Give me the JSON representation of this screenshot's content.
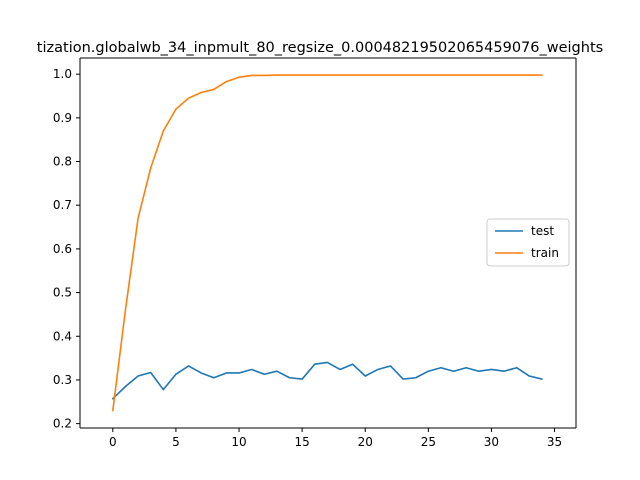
{
  "chart_data": {
    "type": "line",
    "title": "tization.globalwb_34_inpmult_80_regsize_0.00048219502065459076_weights",
    "xlabel": "",
    "ylabel": "",
    "xlim": [
      -2.6,
      36.7
    ],
    "ylim": [
      0.19,
      1.037
    ],
    "xticks": [
      0,
      5,
      10,
      15,
      20,
      25,
      30,
      35
    ],
    "yticks": [
      0.2,
      0.3,
      0.4,
      0.5,
      0.6,
      0.7,
      0.8,
      0.9,
      1.0
    ],
    "xtick_labels": [
      "0",
      "5",
      "10",
      "15",
      "20",
      "25",
      "30",
      "35"
    ],
    "ytick_labels": [
      "0.2",
      "0.3",
      "0.4",
      "0.5",
      "0.6",
      "0.7",
      "0.8",
      "0.9",
      "1.0"
    ],
    "grid": false,
    "legend_position": "center-right",
    "x": [
      0,
      1,
      2,
      3,
      4,
      5,
      6,
      7,
      8,
      9,
      10,
      11,
      12,
      13,
      14,
      15,
      16,
      17,
      18,
      19,
      20,
      21,
      22,
      23,
      24,
      25,
      26,
      27,
      28,
      29,
      30,
      31,
      32,
      33,
      34
    ],
    "series": [
      {
        "name": "test",
        "color": "#1f77b4",
        "values": [
          0.257,
          0.285,
          0.309,
          0.317,
          0.278,
          0.313,
          0.332,
          0.316,
          0.305,
          0.316,
          0.316,
          0.324,
          0.313,
          0.32,
          0.305,
          0.302,
          0.336,
          0.34,
          0.324,
          0.336,
          0.309,
          0.324,
          0.332,
          0.302,
          0.305,
          0.32,
          0.328,
          0.32,
          0.328,
          0.32,
          0.324,
          0.32,
          0.328,
          0.309,
          0.302
        ]
      },
      {
        "name": "train",
        "color": "#ff7f0e",
        "values": [
          0.23,
          0.46,
          0.67,
          0.785,
          0.87,
          0.92,
          0.945,
          0.958,
          0.965,
          0.983,
          0.993,
          0.997,
          0.997,
          0.998,
          0.998,
          0.998,
          0.998,
          0.998,
          0.998,
          0.998,
          0.998,
          0.998,
          0.998,
          0.998,
          0.998,
          0.998,
          0.998,
          0.998,
          0.998,
          0.998,
          0.998,
          0.998,
          0.998,
          0.998,
          0.998
        ]
      }
    ]
  }
}
